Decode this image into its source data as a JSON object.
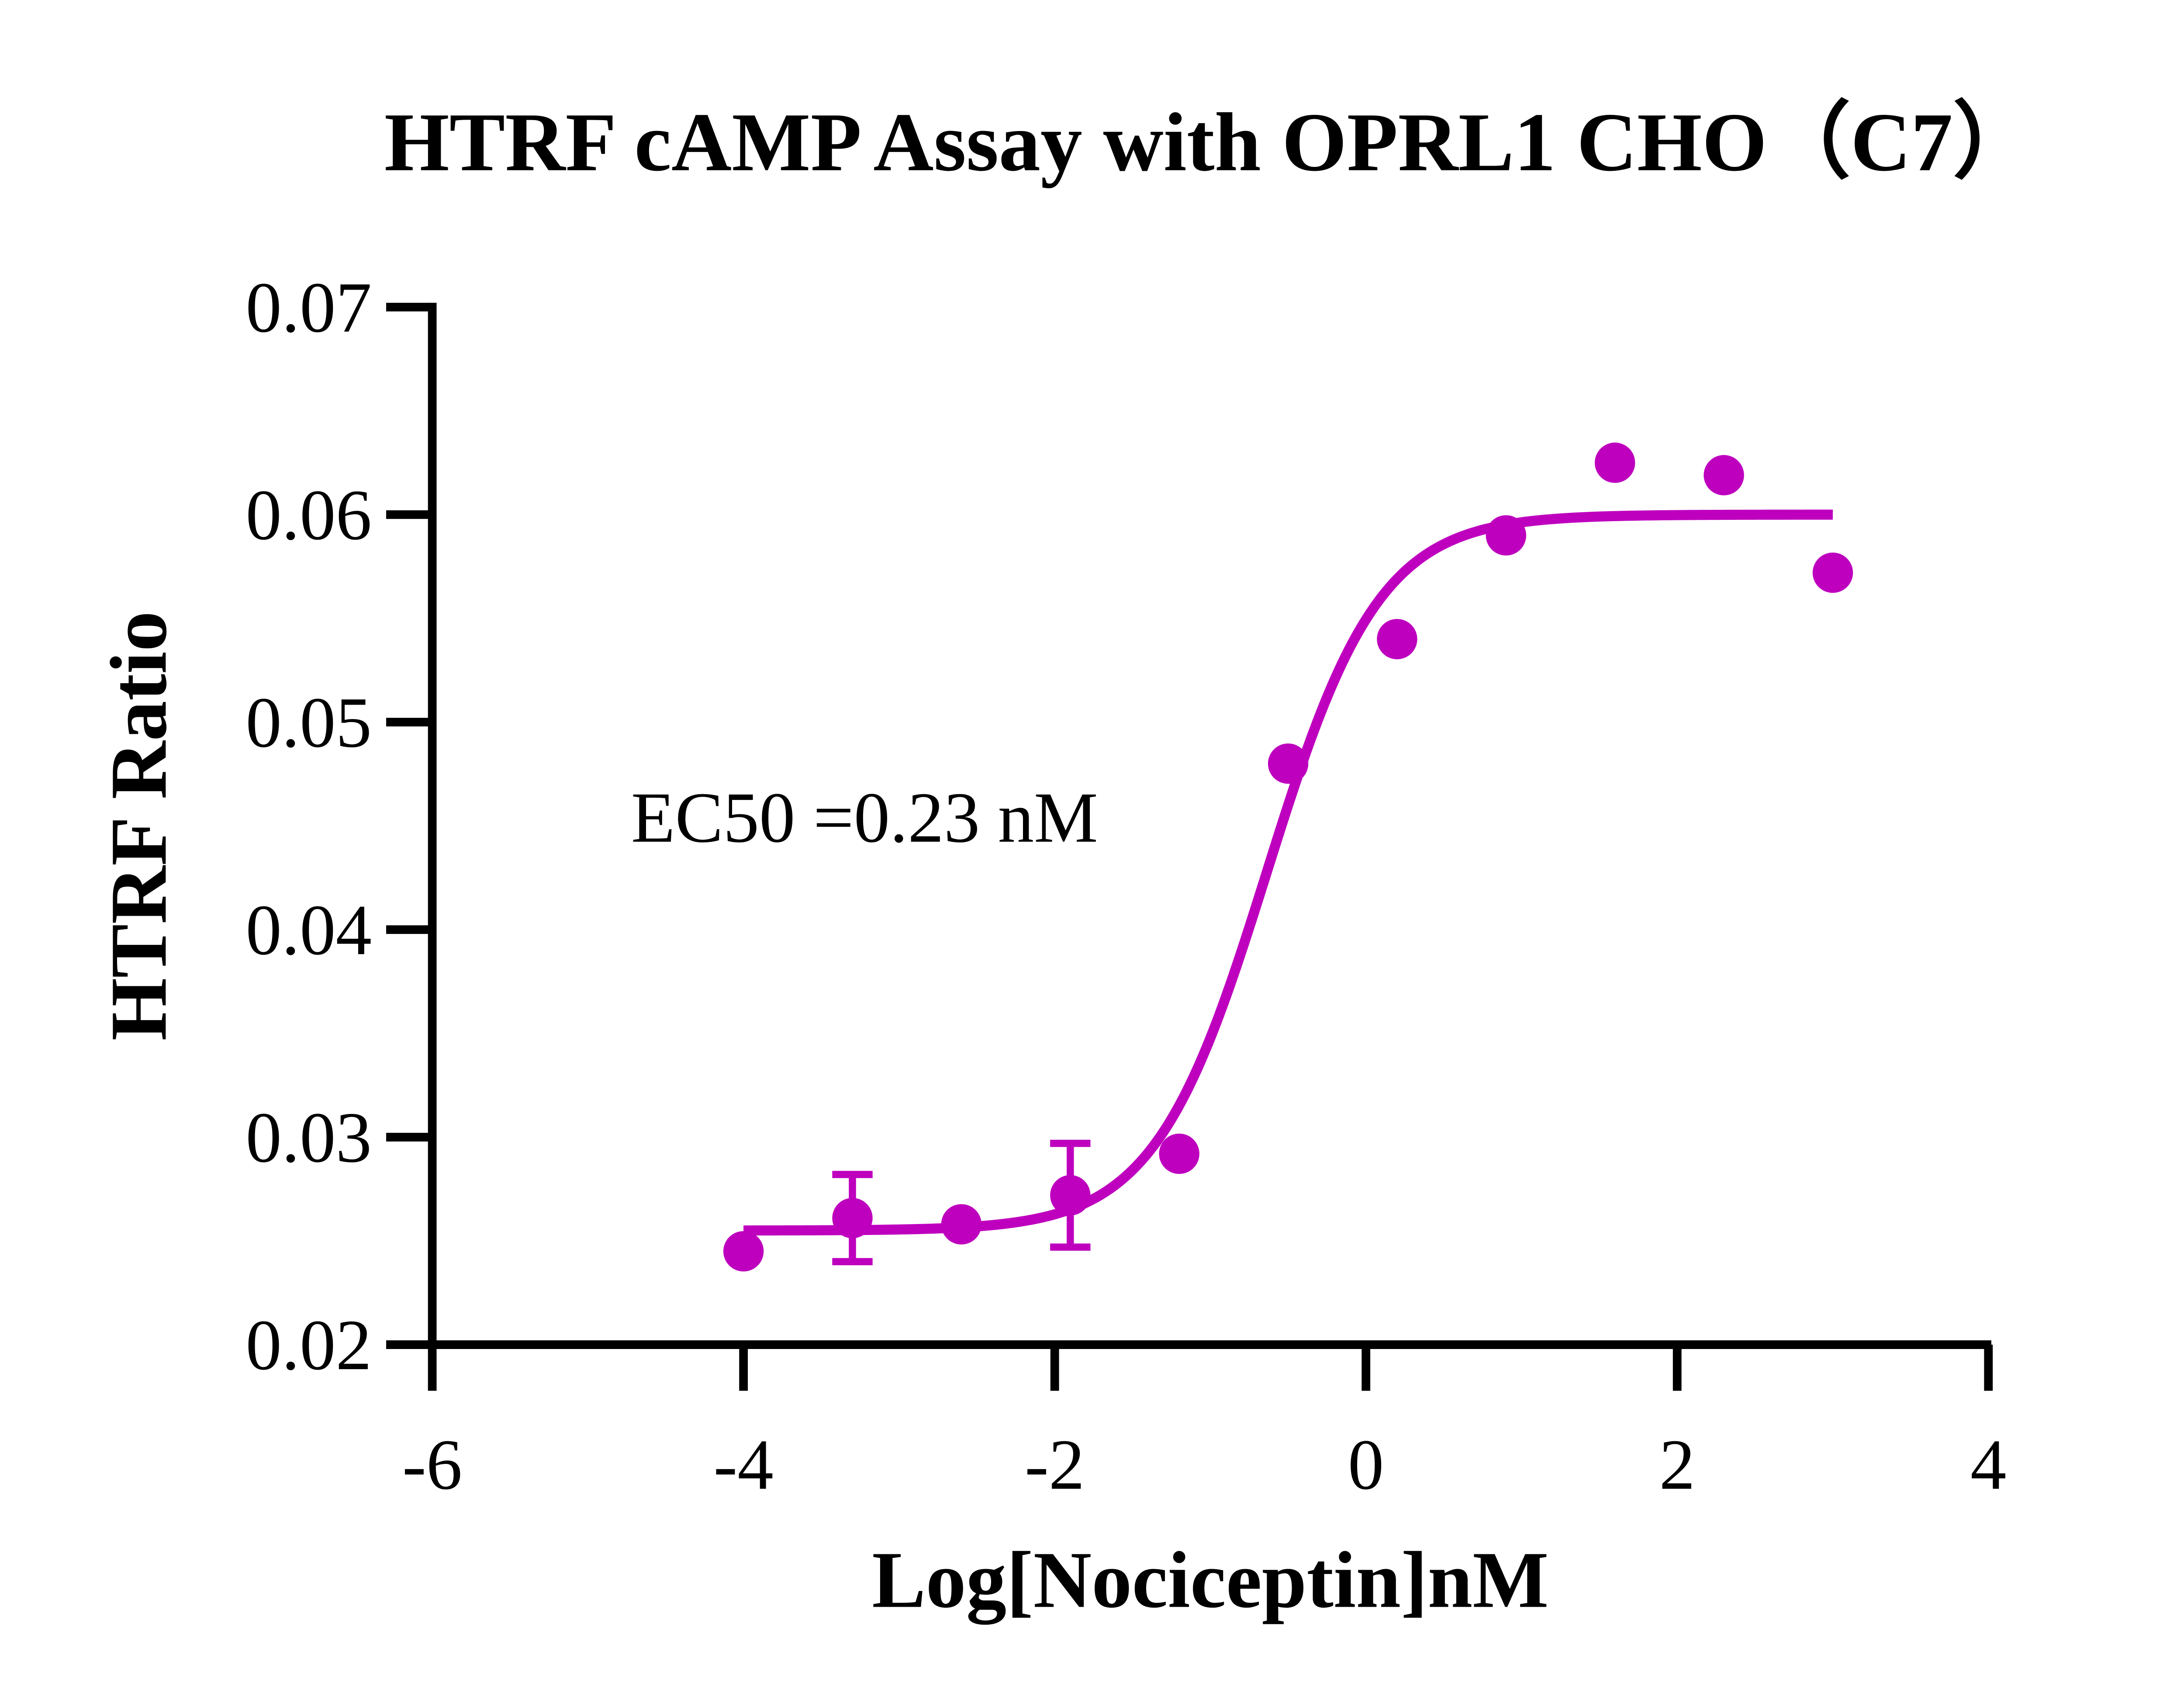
{
  "chart_data": {
    "type": "scatter",
    "title": "HTRF cAMP Assay with OPRL1 CHO（C7）",
    "xlabel": "Log[Nociceptin]nM",
    "ylabel": "HTRF Ratio",
    "xlim": [
      -6,
      4
    ],
    "ylim": [
      0.02,
      0.07
    ],
    "xticks": [
      "-6",
      "-4",
      "-2",
      "0",
      "2",
      "4"
    ],
    "yticks": [
      "0.02",
      "0.03",
      "0.04",
      "0.05",
      "0.06",
      "0.07"
    ],
    "grid": false,
    "color": "#BE00BE",
    "annotation": "EC50 =0.23 nM",
    "points": [
      {
        "x": -4.0,
        "y": 0.0245,
        "err": 0
      },
      {
        "x": -3.3,
        "y": 0.0261,
        "err": 0.0021
      },
      {
        "x": -2.6,
        "y": 0.0258,
        "err": 0
      },
      {
        "x": -1.9,
        "y": 0.0272,
        "err": 0.0025
      },
      {
        "x": -1.2,
        "y": 0.0292,
        "err": 0
      },
      {
        "x": -0.5,
        "y": 0.048,
        "err": 0
      },
      {
        "x": 0.2,
        "y": 0.054,
        "err": 0
      },
      {
        "x": 0.9,
        "y": 0.059,
        "err": 0
      },
      {
        "x": 1.6,
        "y": 0.0625,
        "err": 0
      },
      {
        "x": 2.3,
        "y": 0.0619,
        "err": 0
      },
      {
        "x": 3.0,
        "y": 0.0572,
        "err": 0
      }
    ],
    "fit": {
      "model": "four-parameter logistic",
      "bottom": 0.0255,
      "top": 0.06,
      "logEC50": -0.638,
      "hill": 1.2,
      "x_range": [
        -4,
        3
      ]
    }
  }
}
